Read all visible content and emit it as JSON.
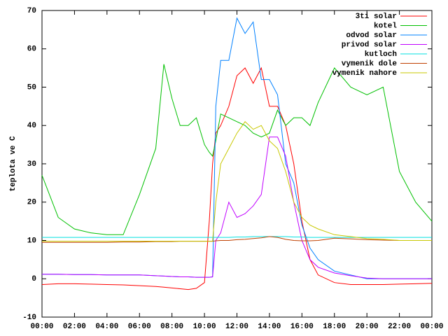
{
  "chart_data": {
    "type": "line",
    "ylabel": "teplota ve C",
    "x": [
      0,
      1,
      2,
      3,
      4,
      5,
      6,
      7,
      7.5,
      8,
      8.5,
      9,
      9.5,
      10,
      10.3,
      10.5,
      10.7,
      11,
      11.5,
      12,
      12.5,
      13,
      13.5,
      14,
      14.5,
      15,
      15.5,
      16,
      16.5,
      17,
      18,
      19,
      20,
      21,
      22,
      23,
      24
    ],
    "xlim": [
      0,
      24
    ],
    "xticks": [
      {
        "value": 0,
        "label": "00:00"
      },
      {
        "value": 2,
        "label": "02:00"
      },
      {
        "value": 4,
        "label": "04:00"
      },
      {
        "value": 6,
        "label": "06:00"
      },
      {
        "value": 8,
        "label": "08:00"
      },
      {
        "value": 10,
        "label": "10:00"
      },
      {
        "value": 12,
        "label": "12:00"
      },
      {
        "value": 14,
        "label": "14:00"
      },
      {
        "value": 16,
        "label": "16:00"
      },
      {
        "value": 18,
        "label": "18:00"
      },
      {
        "value": 20,
        "label": "20:00"
      },
      {
        "value": 22,
        "label": "22:00"
      },
      {
        "value": 24,
        "label": "00:00"
      }
    ],
    "ylim": [
      -10,
      70
    ],
    "yticks": [
      -10,
      0,
      10,
      20,
      30,
      40,
      50,
      60,
      70
    ],
    "legend": "top-right",
    "series": [
      {
        "name": "3ti solar",
        "color": "#ff0000",
        "values": [
          -1.5,
          -1.3,
          -1.3,
          -1.4,
          -1.5,
          -1.6,
          -1.8,
          -2,
          -2.2,
          -2.4,
          -2.6,
          -2.8,
          -2.5,
          -1,
          15,
          30,
          38,
          40,
          45,
          53,
          55,
          51,
          55,
          45,
          45,
          40,
          30,
          15,
          5,
          1,
          -1,
          -1.5,
          -1.5,
          -1.5,
          -1.4,
          -1.3,
          -1.2
        ]
      },
      {
        "name": "kotel",
        "color": "#00c000",
        "values": [
          27,
          16,
          13,
          12,
          11.5,
          11.5,
          22,
          34,
          56,
          47,
          40,
          40,
          42,
          35,
          33,
          32,
          36,
          43,
          42,
          41,
          40,
          38,
          37,
          38,
          44,
          40,
          42,
          42,
          40,
          46,
          55,
          50,
          48,
          50,
          28,
          20,
          15
        ]
      },
      {
        "name": "odvod solar",
        "color": "#0080ff",
        "values": [
          1.2,
          1.2,
          1.1,
          1.1,
          1.0,
          1.0,
          1.0,
          0.8,
          0.7,
          0.6,
          0.5,
          0.5,
          0.4,
          0.4,
          0.4,
          0.5,
          45,
          57,
          57,
          68,
          64,
          67,
          52,
          52,
          48,
          30,
          25,
          14,
          8,
          5,
          2,
          1,
          0,
          0,
          0,
          0,
          0
        ]
      },
      {
        "name": "privod solar",
        "color": "#c000ff",
        "values": [
          1.2,
          1.2,
          1.1,
          1.1,
          1.0,
          1.0,
          1.0,
          0.8,
          0.7,
          0.6,
          0.5,
          0.5,
          0.4,
          0.4,
          0.4,
          0.5,
          10,
          12,
          20,
          16,
          17,
          19,
          22,
          37,
          37,
          32,
          20,
          10,
          5,
          3,
          1.5,
          0.8,
          0.2,
          0,
          0,
          0,
          0
        ]
      },
      {
        "name": "kutloch",
        "color": "#00e0e0",
        "values": [
          10.8,
          10.8,
          10.8,
          10.8,
          10.8,
          10.8,
          10.8,
          10.8,
          10.8,
          10.8,
          10.8,
          10.8,
          10.8,
          10.8,
          10.8,
          10.8,
          10.8,
          10.8,
          10.8,
          10.9,
          10.9,
          11,
          11,
          11,
          11,
          11,
          10.9,
          10.9,
          10.8,
          10.8,
          10.8,
          10.8,
          10.8,
          10.8,
          10.8,
          10.8,
          10.8
        ]
      },
      {
        "name": "vymenik dole",
        "color": "#c04000",
        "values": [
          9.5,
          9.5,
          9.5,
          9.5,
          9.5,
          9.6,
          9.6,
          9.7,
          9.7,
          9.7,
          9.8,
          9.8,
          9.8,
          9.8,
          9.8,
          9.8,
          9.9,
          10,
          10,
          10.2,
          10.3,
          10.5,
          10.7,
          11,
          10.8,
          10.3,
          10,
          9.9,
          9.9,
          10,
          10.6,
          10.4,
          10.2,
          10.1,
          10,
          10,
          10
        ]
      },
      {
        "name": "vymenik nahore",
        "color": "#c8c800",
        "values": [
          9.8,
          9.8,
          9.8,
          9.8,
          9.8,
          9.8,
          9.8,
          9.8,
          9.8,
          9.8,
          9.8,
          9.8,
          9.8,
          9.8,
          9.8,
          9.8,
          20,
          30,
          34,
          38,
          41,
          39,
          40,
          36,
          34,
          28,
          20,
          16,
          14,
          13,
          11.5,
          11,
          10.5,
          10.3,
          10,
          10,
          10
        ]
      }
    ]
  }
}
